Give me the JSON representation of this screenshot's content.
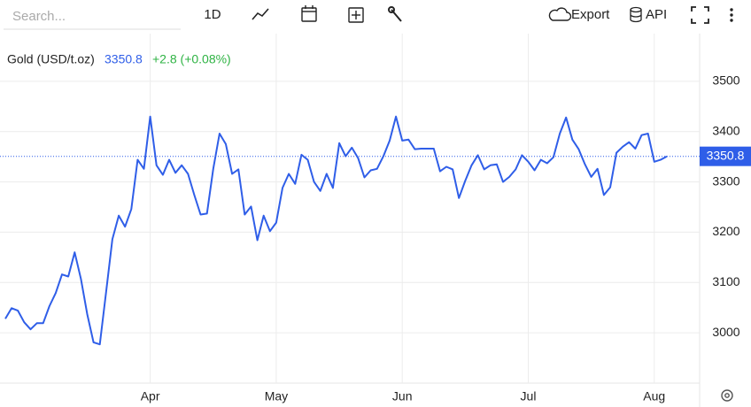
{
  "toolbar": {
    "search_placeholder": "Search...",
    "interval": "1D",
    "export": "Export",
    "api": "API"
  },
  "chart_data": {
    "type": "line",
    "title": "Gold (USD/t.oz)",
    "change": "+2.8 (+0.08%)",
    "color": "#2f5ee8",
    "change_color": "#2fb344",
    "grid": true,
    "categories": [
      null,
      null,
      null,
      null,
      null,
      null,
      null,
      null,
      null,
      null,
      null,
      null,
      null,
      null,
      null,
      null,
      null,
      null,
      null,
      null,
      null,
      null,
      null,
      "Apr",
      null,
      null,
      null,
      null,
      null,
      null,
      null,
      null,
      null,
      null,
      null,
      null,
      null,
      null,
      null,
      null,
      null,
      null,
      null,
      "May",
      null,
      null,
      null,
      null,
      null,
      null,
      null,
      null,
      null,
      null,
      null,
      null,
      null,
      null,
      null,
      null,
      null,
      null,
      null,
      "Jun",
      null,
      null,
      null,
      null,
      null,
      null,
      null,
      null,
      null,
      null,
      null,
      null,
      null,
      null,
      null,
      null,
      null,
      null,
      null,
      "Jul",
      null,
      null,
      null,
      null,
      null,
      null,
      null,
      null,
      null,
      null,
      null,
      null,
      null,
      null,
      null,
      null,
      null,
      null,
      null,
      "Aug",
      null,
      null
    ],
    "values": [
      3028,
      3049,
      3044,
      3021,
      3007,
      3019,
      3019,
      3053,
      3079,
      3116,
      3112,
      3160,
      3107,
      3037,
      2981,
      2977,
      3081,
      3186,
      3233,
      3211,
      3246,
      3344,
      3326,
      3430,
      3333,
      3314,
      3344,
      3318,
      3333,
      3316,
      3274,
      3235,
      3237,
      3326,
      3396,
      3375,
      3316,
      3325,
      3235,
      3251,
      3184,
      3233,
      3202,
      3219,
      3288,
      3316,
      3296,
      3354,
      3344,
      3300,
      3282,
      3316,
      3288,
      3377,
      3351,
      3368,
      3347,
      3309,
      3323,
      3326,
      3351,
      3382,
      3430,
      3382,
      3384,
      3365,
      3366,
      3366,
      3366,
      3321,
      3330,
      3325,
      3268,
      3302,
      3333,
      3353,
      3325,
      3333,
      3335,
      3300,
      3310,
      3325,
      3353,
      3340,
      3323,
      3344,
      3337,
      3349,
      3396,
      3428,
      3384,
      3365,
      3335,
      3310,
      3326,
      3274,
      3289,
      3358,
      3370,
      3379,
      3366,
      3393,
      3396,
      3340,
      3344,
      3350.8
    ],
    "ylim": [
      2900,
      3600
    ],
    "yticks": [
      3000,
      3100,
      3200,
      3300,
      3400,
      3500
    ]
  }
}
